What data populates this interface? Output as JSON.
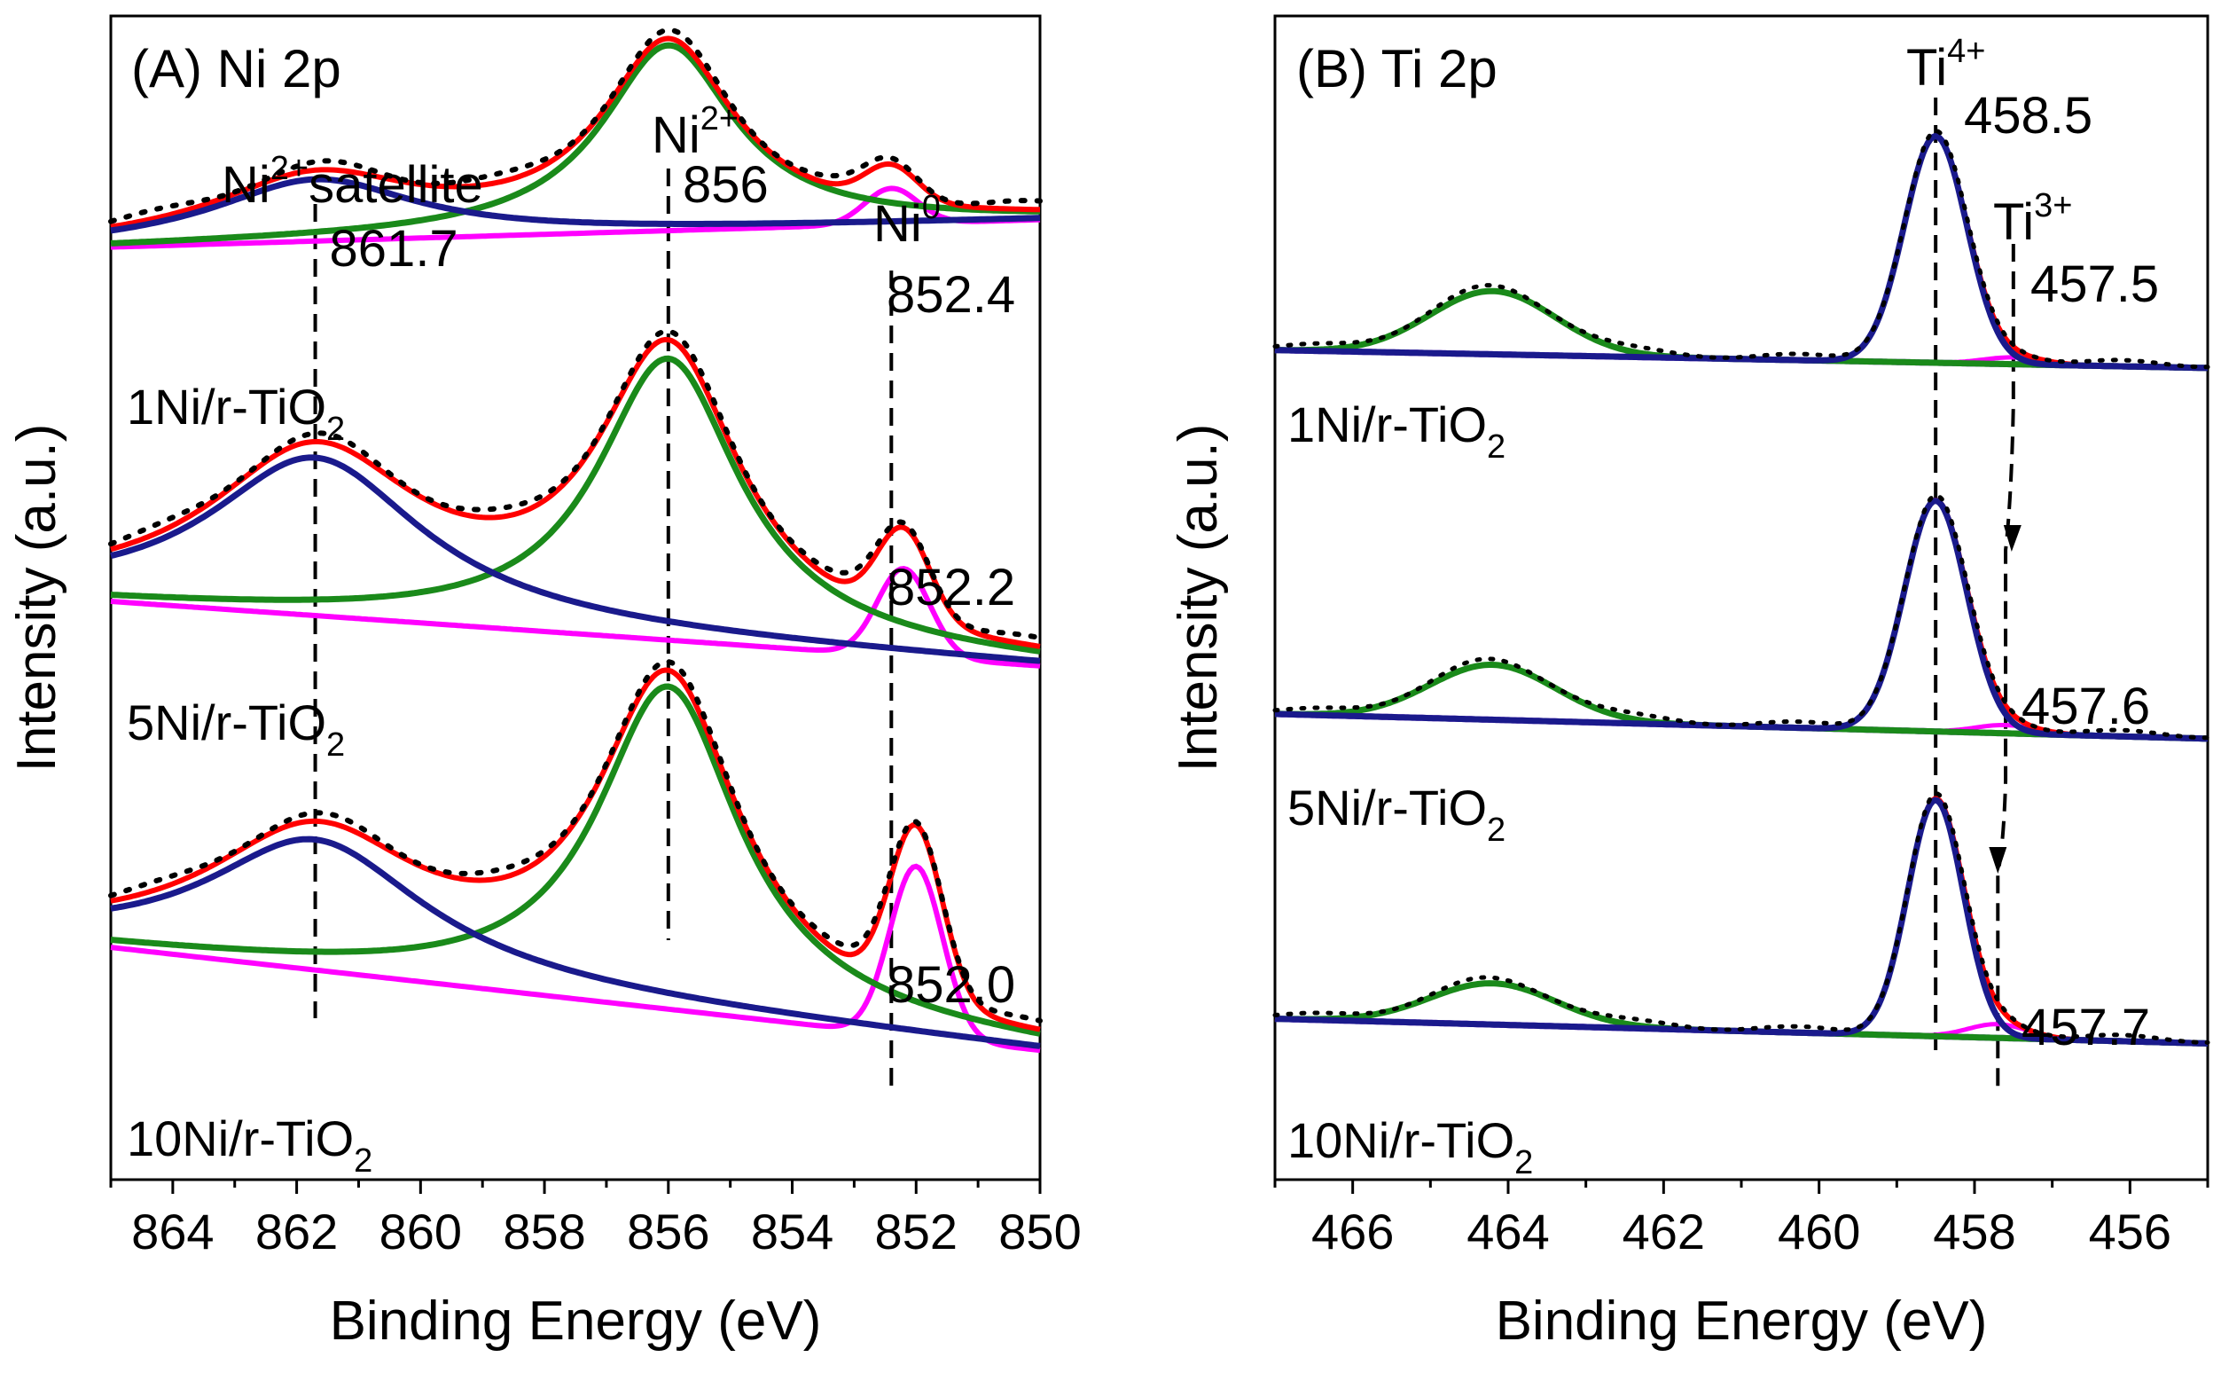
{
  "chart_data": [
    {
      "type": "line",
      "panel": "A",
      "title": "(A) Ni 2p",
      "xlabel": "Binding Energy (eV)",
      "ylabel": "Intensity (a.u.)",
      "xlim": [
        865,
        850
      ],
      "x_reversed": true,
      "xticks": [
        864,
        862,
        860,
        858,
        856,
        854,
        852,
        850
      ],
      "y_ticks_shown": false,
      "colors": {
        "fit_envelope": "#ff0000",
        "ni2_main": "#1a8a1a",
        "satellite": "#1a1a8c",
        "ni0": "#ff00ff",
        "raw_data": "#000000",
        "guide": "#000000"
      },
      "annotations": [
        {
          "id": "sat",
          "species": "Ni",
          "charge": "2+",
          "suffix": "satellite",
          "value": "861.7",
          "x": 861.7
        },
        {
          "id": "main",
          "species": "Ni",
          "charge": "2+",
          "suffix": "",
          "value": "856",
          "x": 856.0
        },
        {
          "id": "ni0",
          "species": "Ni",
          "charge": "0",
          "suffix": "",
          "value": "852.4",
          "x": 852.4
        }
      ],
      "extra_labels": [
        {
          "for": "ni0-5",
          "text": "852.2",
          "x": 852.2
        },
        {
          "for": "ni0-10",
          "text": "852.0",
          "x": 852.0
        }
      ],
      "series": [
        {
          "name": "1Ni/r-TiO2",
          "label_main": "1Ni/r-TiO",
          "label_sub": "2",
          "baseline_left": 0.18,
          "baseline_right": 0.16,
          "sat_baseline_left": 0.17,
          "components": [
            {
              "name": "Ni2+ satellite",
              "center": 861.7,
              "fwhm": 4.0,
              "height": 0.045
            },
            {
              "name": "Ni2+",
              "center": 856.0,
              "fwhm": 2.6,
              "height": 0.135
            },
            {
              "name": "Ni0",
              "center": 852.4,
              "fwhm": 1.0,
              "height": 0.026
            }
          ]
        },
        {
          "name": "5Ni/r-TiO2",
          "label_main": "5Ni/r-TiO",
          "label_sub": "2",
          "baseline_left": 0.438,
          "baseline_right": 0.485,
          "sat_baseline_left": 0.438,
          "components": [
            {
              "name": "Ni2+ satellite",
              "center": 861.7,
              "fwhm": 4.2,
              "height": 0.115
            },
            {
              "name": "Ni2+",
              "center": 856.0,
              "fwhm": 2.8,
              "height": 0.205
            },
            {
              "name": "Ni0",
              "center": 852.2,
              "fwhm": 1.0,
              "height": 0.064
            }
          ]
        },
        {
          "name": "10Ni/r-TiO2",
          "label_main": "10Ni/r-TiO",
          "label_sub": "2",
          "baseline_left": 0.69,
          "baseline_right": 0.765,
          "sat_baseline_left": 0.69,
          "components": [
            {
              "name": "Ni2+ satellite",
              "center": 861.7,
              "fwhm": 4.3,
              "height": 0.095
            },
            {
              "name": "Ni2+",
              "center": 856.0,
              "fwhm": 2.8,
              "height": 0.235
            },
            {
              "name": "Ni0",
              "center": 852.0,
              "fwhm": 1.0,
              "height": 0.124
            }
          ]
        }
      ]
    },
    {
      "type": "line",
      "panel": "B",
      "title": "(B) Ti 2p",
      "xlabel": "Binding Energy (eV)",
      "ylabel": "Intensity (a.u.)",
      "xlim": [
        467,
        455
      ],
      "x_reversed": true,
      "xticks": [
        466,
        464,
        462,
        460,
        458,
        456
      ],
      "y_ticks_shown": false,
      "colors": {
        "fit_envelope": "#ff0000",
        "ti2p12": "#1a8a1a",
        "ti2p32": "#1a1a8c",
        "ti3": "#ff00ff",
        "baseline": "#8a2be2",
        "raw_data": "#000000",
        "guide": "#000000"
      },
      "annotations": [
        {
          "id": "ti4",
          "species": "Ti",
          "charge": "4+",
          "value": "458.5",
          "x": 458.5
        },
        {
          "id": "ti3",
          "species": "Ti",
          "charge": "3+",
          "value": "457.5",
          "x": 457.5
        }
      ],
      "extra_labels": [
        {
          "for": "ti3-5",
          "text": "457.6",
          "x": 457.6
        },
        {
          "for": "ti3-10",
          "text": "457.7",
          "x": 457.7
        }
      ],
      "series": [
        {
          "name": "1Ni/r-TiO2",
          "label_main": "1Ni/r-TiO",
          "label_sub": "2",
          "baseline_left": 0.255,
          "baseline_right": 0.268,
          "components": [
            {
              "name": "Ti 2p1/2",
              "center": 464.2,
              "fwhm": 1.9,
              "height": 0.046
            },
            {
              "name": "Ti 2p3/2 (Ti4+)",
              "center": 458.5,
              "fwhm": 0.95,
              "height": 0.165
            },
            {
              "name": "Ti3+",
              "center": 457.5,
              "fwhm": 0.9,
              "height": 0.005
            }
          ]
        },
        {
          "name": "5Ni/r-TiO2",
          "label_main": "5Ni/r-TiO",
          "label_sub": "2",
          "baseline_left": 0.52,
          "baseline_right": 0.538,
          "components": [
            {
              "name": "Ti 2p1/2",
              "center": 464.2,
              "fwhm": 1.9,
              "height": 0.04
            },
            {
              "name": "Ti 2p3/2 (Ti4+)",
              "center": 458.5,
              "fwhm": 0.95,
              "height": 0.168
            },
            {
              "name": "Ti3+",
              "center": 457.6,
              "fwhm": 0.9,
              "height": 0.006
            }
          ]
        },
        {
          "name": "10Ni/r-TiO2",
          "label_main": "10Ni/r-TiO",
          "label_sub": "2",
          "baseline_left": 0.742,
          "baseline_right": 0.76,
          "components": [
            {
              "name": "Ti 2p1/2",
              "center": 464.2,
              "fwhm": 1.9,
              "height": 0.03
            },
            {
              "name": "Ti 2p3/2 (Ti4+)",
              "center": 458.5,
              "fwhm": 0.85,
              "height": 0.172
            },
            {
              "name": "Ti3+",
              "center": 457.7,
              "fwhm": 0.9,
              "height": 0.01
            }
          ]
        }
      ]
    }
  ]
}
